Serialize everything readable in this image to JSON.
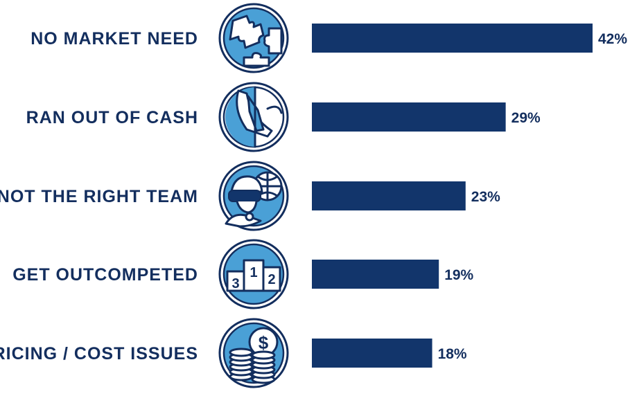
{
  "chart_data": {
    "type": "bar",
    "orientation": "horizontal",
    "categories": [
      "NO MARKET NEED",
      "RAN OUT OF CASH",
      "NOT THE RIGHT TEAM",
      "GET OUTCOMPETED",
      "PRICING / COST ISSUES"
    ],
    "values": [
      42,
      29,
      23,
      19,
      18
    ],
    "value_labels": [
      "42%",
      "29%",
      "23%",
      "19%",
      "18%"
    ],
    "icons": [
      "puzzle-icon",
      "suit-tie-icon",
      "vr-headset-globe-icon",
      "podium-icon",
      "coins-icon"
    ],
    "podium_numbers": [
      "3",
      "1",
      "2"
    ],
    "dollar_sign": "$",
    "xlim": [
      0,
      42
    ],
    "grid": false,
    "colors": {
      "bar": "#12356b",
      "text": "#132e5e",
      "icon_fill": "#4aa0d6",
      "icon_stroke": "#132e5e"
    }
  }
}
